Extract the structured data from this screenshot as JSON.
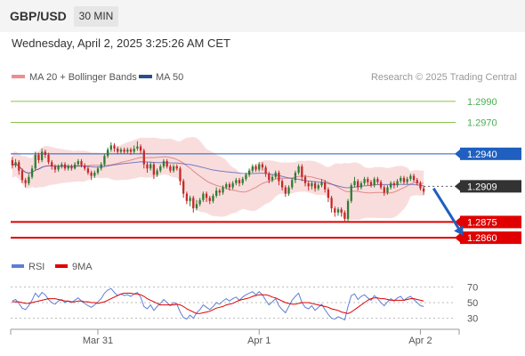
{
  "header": {
    "pair": "GBP/USD",
    "timeframe": "30 MIN",
    "datetime": "Wednesday, April 2, 2025 3:25:26 AM CET"
  },
  "legend": {
    "bollinger": "MA 20 + Bollinger Bands",
    "ma50": "MA 50",
    "credit": "Research © 2025 Trading Central"
  },
  "rsi_legend": {
    "rsi": "RSI",
    "ma": "9MA"
  },
  "colors": {
    "up": "#2e7d32",
    "down": "#c62828",
    "resistance": "#8bc34a",
    "support": "#e00000",
    "pivot": "#1f5fbf",
    "bollinger_fill": "#f8d4d4",
    "ma50": "#3f51b5",
    "rsi": "#5b7fd6",
    "rsi_ma": "#e00000"
  },
  "chart_data": [
    {
      "type": "candlestick",
      "ylim": [
        1.2855,
        1.2995
      ],
      "x_tick_labels": [
        "Mar 31",
        "Apr 1",
        "Apr 2"
      ],
      "x_tick_index": [
        26,
        75,
        124
      ],
      "last_price": "1.2909",
      "levels": [
        {
          "value": 1.299,
          "label": "1.2990",
          "kind": "resistance"
        },
        {
          "value": 1.297,
          "label": "1.2970",
          "kind": "resistance"
        },
        {
          "value": 1.294,
          "label": "1.2940",
          "kind": "pivot"
        },
        {
          "value": 1.2875,
          "label": "1.2875",
          "kind": "support"
        },
        {
          "value": 1.286,
          "label": "1.2860",
          "kind": "support"
        }
      ],
      "forecast_arrow": {
        "from_index": 128,
        "from_value": 1.2907,
        "to_index": 137,
        "to_value": 1.2862
      },
      "candles": [
        [
          1.2934,
          1.2929,
          1.2937,
          1.2926
        ],
        [
          1.2929,
          1.2932,
          1.2935,
          1.2927
        ],
        [
          1.2932,
          1.2924,
          1.2934,
          1.292
        ],
        [
          1.2924,
          1.2915,
          1.2926,
          1.2912
        ],
        [
          1.2915,
          1.2912,
          1.2917,
          1.2908
        ],
        [
          1.2912,
          1.2918,
          1.2921,
          1.291
        ],
        [
          1.2918,
          1.2926,
          1.2929,
          1.2916
        ],
        [
          1.2926,
          1.2939,
          1.2942,
          1.2924
        ],
        [
          1.2939,
          1.2934,
          1.2941,
          1.2931
        ],
        [
          1.2934,
          1.2942,
          1.2945,
          1.2932
        ],
        [
          1.2942,
          1.2939,
          1.2944,
          1.2936
        ],
        [
          1.2939,
          1.2932,
          1.2941,
          1.293
        ],
        [
          1.2932,
          1.2928,
          1.2934,
          1.2925
        ],
        [
          1.2928,
          1.2925,
          1.293,
          1.2922
        ],
        [
          1.2925,
          1.2928,
          1.293,
          1.2923
        ],
        [
          1.2928,
          1.293,
          1.2932,
          1.2926
        ],
        [
          1.293,
          1.2926,
          1.2932,
          1.2924
        ],
        [
          1.2926,
          1.2928,
          1.293,
          1.2924
        ],
        [
          1.2928,
          1.2926,
          1.293,
          1.2924
        ],
        [
          1.2926,
          1.293,
          1.2932,
          1.2925
        ],
        [
          1.293,
          1.2933,
          1.2935,
          1.2928
        ],
        [
          1.2933,
          1.2929,
          1.2935,
          1.2927
        ],
        [
          1.2929,
          1.2926,
          1.2931,
          1.2924
        ],
        [
          1.2926,
          1.2922,
          1.2928,
          1.292
        ],
        [
          1.2922,
          1.2919,
          1.2924,
          1.2915
        ],
        [
          1.2919,
          1.2922,
          1.2924,
          1.2917
        ],
        [
          1.2922,
          1.2926,
          1.2928,
          1.292
        ],
        [
          1.2926,
          1.293,
          1.2932,
          1.2924
        ],
        [
          1.293,
          1.2938,
          1.294,
          1.2928
        ],
        [
          1.2938,
          1.2944,
          1.2946,
          1.2936
        ],
        [
          1.2944,
          1.2948,
          1.2951,
          1.2942
        ],
        [
          1.2948,
          1.2945,
          1.295,
          1.2942
        ],
        [
          1.2945,
          1.2942,
          1.2947,
          1.294
        ],
        [
          1.2942,
          1.2944,
          1.2946,
          1.294
        ],
        [
          1.2944,
          1.2942,
          1.2946,
          1.294
        ],
        [
          1.2942,
          1.2944,
          1.2946,
          1.294
        ],
        [
          1.2944,
          1.2942,
          1.2946,
          1.2939
        ],
        [
          1.2942,
          1.2945,
          1.2948,
          1.294
        ],
        [
          1.2945,
          1.2947,
          1.2952,
          1.2943
        ],
        [
          1.2947,
          1.2943,
          1.2949,
          1.294
        ],
        [
          1.2943,
          1.293,
          1.2945,
          1.2926
        ],
        [
          1.293,
          1.2926,
          1.2932,
          1.2922
        ],
        [
          1.2926,
          1.293,
          1.2932,
          1.2924
        ],
        [
          1.293,
          1.292,
          1.2932,
          1.2916
        ],
        [
          1.292,
          1.2924,
          1.2926,
          1.2918
        ],
        [
          1.2924,
          1.2928,
          1.293,
          1.2922
        ],
        [
          1.2928,
          1.2933,
          1.2935,
          1.2926
        ],
        [
          1.2933,
          1.2928,
          1.2935,
          1.2926
        ],
        [
          1.2928,
          1.2924,
          1.293,
          1.2922
        ],
        [
          1.2924,
          1.2928,
          1.293,
          1.2922
        ],
        [
          1.2928,
          1.2926,
          1.293,
          1.2924
        ],
        [
          1.2926,
          1.2914,
          1.2928,
          1.291
        ],
        [
          1.2914,
          1.2902,
          1.2916,
          1.2898
        ],
        [
          1.2902,
          1.2895,
          1.2904,
          1.2892
        ],
        [
          1.2895,
          1.2898,
          1.29,
          1.289
        ],
        [
          1.2898,
          1.2888,
          1.29,
          1.2884
        ],
        [
          1.2888,
          1.2892,
          1.2896,
          1.2886
        ],
        [
          1.2892,
          1.2896,
          1.2898,
          1.289
        ],
        [
          1.2896,
          1.2902,
          1.2904,
          1.2894
        ],
        [
          1.2902,
          1.2898,
          1.2904,
          1.2894
        ],
        [
          1.2898,
          1.2895,
          1.29,
          1.2892
        ],
        [
          1.2895,
          1.29,
          1.2902,
          1.2893
        ],
        [
          1.29,
          1.2905,
          1.2908,
          1.2898
        ],
        [
          1.2905,
          1.2903,
          1.2907,
          1.29
        ],
        [
          1.2903,
          1.2908,
          1.291,
          1.2901
        ],
        [
          1.2908,
          1.2911,
          1.2913,
          1.2906
        ],
        [
          1.2911,
          1.2908,
          1.2913,
          1.2905
        ],
        [
          1.2908,
          1.2912,
          1.2914,
          1.2906
        ],
        [
          1.2912,
          1.2915,
          1.2917,
          1.291
        ],
        [
          1.2915,
          1.2912,
          1.2917,
          1.2909
        ],
        [
          1.2912,
          1.2916,
          1.2918,
          1.291
        ],
        [
          1.2916,
          1.292,
          1.2922,
          1.2914
        ],
        [
          1.292,
          1.2924,
          1.2926,
          1.2918
        ],
        [
          1.2924,
          1.2928,
          1.293,
          1.2922
        ],
        [
          1.2928,
          1.2925,
          1.293,
          1.2923
        ],
        [
          1.2925,
          1.293,
          1.2932,
          1.2923
        ],
        [
          1.293,
          1.2927,
          1.2932,
          1.2924
        ],
        [
          1.2927,
          1.2921,
          1.2929,
          1.2918
        ],
        [
          1.2921,
          1.2915,
          1.2923,
          1.2912
        ],
        [
          1.2915,
          1.2918,
          1.292,
          1.2913
        ],
        [
          1.2918,
          1.2922,
          1.2924,
          1.2916
        ],
        [
          1.2922,
          1.2914,
          1.2924,
          1.291
        ],
        [
          1.2914,
          1.2908,
          1.2916,
          1.2905
        ],
        [
          1.2908,
          1.2902,
          1.291,
          1.2899
        ],
        [
          1.2902,
          1.2908,
          1.291,
          1.29
        ],
        [
          1.2908,
          1.2915,
          1.2917,
          1.2906
        ],
        [
          1.2915,
          1.2922,
          1.2924,
          1.2912
        ],
        [
          1.2922,
          1.2928,
          1.293,
          1.292
        ],
        [
          1.2928,
          1.2918,
          1.293,
          1.2914
        ],
        [
          1.2918,
          1.2912,
          1.292,
          1.2909
        ],
        [
          1.2912,
          1.2909,
          1.2914,
          1.2905
        ],
        [
          1.2909,
          1.2912,
          1.2914,
          1.2906
        ],
        [
          1.2912,
          1.2907,
          1.2914,
          1.2904
        ],
        [
          1.2907,
          1.291,
          1.2912,
          1.2905
        ],
        [
          1.291,
          1.2913,
          1.2916,
          1.2908
        ],
        [
          1.2913,
          1.2906,
          1.2915,
          1.2903
        ],
        [
          1.2906,
          1.2898,
          1.2908,
          1.2894
        ],
        [
          1.2898,
          1.2888,
          1.29,
          1.2884
        ],
        [
          1.2888,
          1.2884,
          1.289,
          1.288
        ],
        [
          1.2884,
          1.2887,
          1.2889,
          1.2881
        ],
        [
          1.2887,
          1.2884,
          1.2889,
          1.288
        ],
        [
          1.2884,
          1.2878,
          1.2886,
          1.2875
        ],
        [
          1.2878,
          1.2895,
          1.2897,
          1.2876
        ],
        [
          1.2895,
          1.291,
          1.2912,
          1.2893
        ],
        [
          1.291,
          1.2914,
          1.2918,
          1.2908
        ],
        [
          1.2914,
          1.2908,
          1.2916,
          1.2905
        ],
        [
          1.2908,
          1.2912,
          1.2914,
          1.2906
        ],
        [
          1.2912,
          1.2916,
          1.2918,
          1.291
        ],
        [
          1.2916,
          1.2913,
          1.2918,
          1.291
        ],
        [
          1.2913,
          1.291,
          1.2915,
          1.2908
        ],
        [
          1.291,
          1.2916,
          1.2918,
          1.2908
        ],
        [
          1.2916,
          1.2913,
          1.2918,
          1.2911
        ],
        [
          1.2913,
          1.2908,
          1.2915,
          1.2906
        ],
        [
          1.2908,
          1.2903,
          1.291,
          1.29
        ],
        [
          1.2903,
          1.2908,
          1.291,
          1.2901
        ],
        [
          1.2908,
          1.2912,
          1.2914,
          1.2906
        ],
        [
          1.2912,
          1.291,
          1.2914,
          1.2907
        ],
        [
          1.291,
          1.2914,
          1.2916,
          1.2908
        ],
        [
          1.2914,
          1.2917,
          1.2919,
          1.2912
        ],
        [
          1.2917,
          1.2913,
          1.2919,
          1.2911
        ],
        [
          1.2913,
          1.2916,
          1.2918,
          1.2911
        ],
        [
          1.2916,
          1.2919,
          1.2921,
          1.2914
        ],
        [
          1.2919,
          1.2915,
          1.2921,
          1.2913
        ],
        [
          1.2915,
          1.2912,
          1.2917,
          1.291
        ],
        [
          1.2912,
          1.2907,
          1.2914,
          1.2905
        ],
        [
          1.2907,
          1.2904,
          1.2909,
          1.2901
        ]
      ]
    },
    {
      "type": "line",
      "name": "RSI panel",
      "ylim": [
        25,
        75
      ],
      "y_tick_labels": [
        "70",
        "50",
        "30"
      ],
      "y_ticks": [
        70,
        50,
        30
      ],
      "series": [
        {
          "name": "RSI",
          "values": [
            52,
            54,
            49,
            43,
            41,
            46,
            53,
            62,
            57,
            63,
            60,
            54,
            50,
            48,
            52,
            54,
            50,
            52,
            50,
            53,
            56,
            52,
            49,
            46,
            44,
            47,
            51,
            55,
            62,
            66,
            68,
            63,
            59,
            61,
            59,
            60,
            58,
            61,
            63,
            57,
            45,
            42,
            47,
            40,
            45,
            49,
            54,
            50,
            46,
            50,
            48,
            38,
            31,
            29,
            34,
            30,
            37,
            41,
            47,
            44,
            41,
            45,
            50,
            48,
            52,
            55,
            52,
            55,
            57,
            53,
            57,
            60,
            62,
            64,
            60,
            64,
            60,
            53,
            47,
            51,
            55,
            46,
            41,
            37,
            45,
            53,
            58,
            62,
            50,
            44,
            42,
            46,
            40,
            44,
            48,
            41,
            35,
            30,
            29,
            32,
            30,
            28,
            45,
            59,
            61,
            54,
            58,
            60,
            56,
            53,
            59,
            55,
            50,
            46,
            51,
            55,
            52,
            56,
            58,
            53,
            56,
            58,
            54,
            50,
            46,
            45
          ]
        },
        {
          "name": "9MA",
          "values": [
            51,
            51,
            51,
            50,
            49,
            49,
            50,
            51,
            52,
            53,
            54,
            55,
            55,
            55,
            54,
            53,
            52,
            52,
            51,
            51,
            52,
            52,
            51,
            51,
            50,
            50,
            49,
            50,
            51,
            53,
            55,
            57,
            59,
            61,
            62,
            62,
            62,
            61,
            61,
            60,
            58,
            55,
            53,
            51,
            49,
            47,
            47,
            47,
            47,
            47,
            48,
            47,
            45,
            42,
            40,
            38,
            36,
            36,
            37,
            38,
            39,
            41,
            43,
            44,
            45,
            47,
            48,
            49,
            51,
            53,
            54,
            55,
            56,
            58,
            59,
            60,
            60,
            60,
            59,
            57,
            56,
            54,
            52,
            50,
            49,
            48,
            48,
            49,
            50,
            50,
            50,
            49,
            48,
            47,
            46,
            45,
            44,
            42,
            41,
            40,
            38,
            37,
            36,
            38,
            41,
            44,
            47,
            50,
            53,
            55,
            56,
            56,
            55,
            55,
            54,
            53,
            53,
            53,
            53,
            53,
            54,
            55,
            55,
            54,
            53,
            52
          ]
        }
      ]
    }
  ]
}
